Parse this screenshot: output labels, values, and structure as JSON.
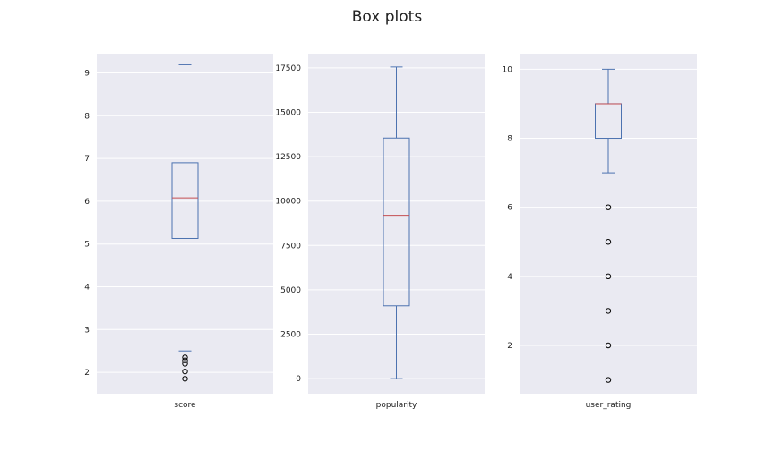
{
  "title": "Box plots",
  "colors": {
    "axes_bg": "#EAEAF2",
    "grid": "#FFFFFF",
    "box": "#4C72B0",
    "median": "#C44E52",
    "outlier": "#000000"
  },
  "chart_data": [
    {
      "type": "box",
      "xlabel": "score",
      "ylim": [
        1.5,
        9.45
      ],
      "yticks": [
        2,
        3,
        4,
        5,
        6,
        7,
        8,
        9
      ],
      "ytick_labels": [
        "2",
        "3",
        "4",
        "5",
        "6",
        "7",
        "8",
        "9"
      ],
      "grid": true,
      "whisker_low": 2.5,
      "q1": 5.13,
      "median": 6.08,
      "q3": 6.9,
      "whisker_high": 9.19,
      "outliers": [
        2.35,
        2.28,
        2.2,
        2.02,
        1.85
      ]
    },
    {
      "type": "box",
      "xlabel": "popularity",
      "ylim": [
        -850,
        18300
      ],
      "yticks": [
        0,
        2500,
        5000,
        7500,
        10000,
        12500,
        15000,
        17500
      ],
      "ytick_labels": [
        "0",
        "2500",
        "5000",
        "7500",
        "10000",
        "12500",
        "15000",
        "17500"
      ],
      "grid": true,
      "whisker_low": 0,
      "q1": 4100,
      "median": 9200,
      "q3": 13550,
      "whisker_high": 17550,
      "outliers": []
    },
    {
      "type": "box",
      "xlabel": "user_rating",
      "ylim": [
        0.6,
        10.45
      ],
      "yticks": [
        2,
        4,
        6,
        8,
        10
      ],
      "ytick_labels": [
        "2",
        "4",
        "6",
        "8",
        "10"
      ],
      "grid": true,
      "whisker_low": 7,
      "q1": 8,
      "median": 9,
      "q3": 9,
      "whisker_high": 10,
      "outliers": [
        6,
        5,
        4,
        3,
        2,
        1
      ]
    }
  ]
}
